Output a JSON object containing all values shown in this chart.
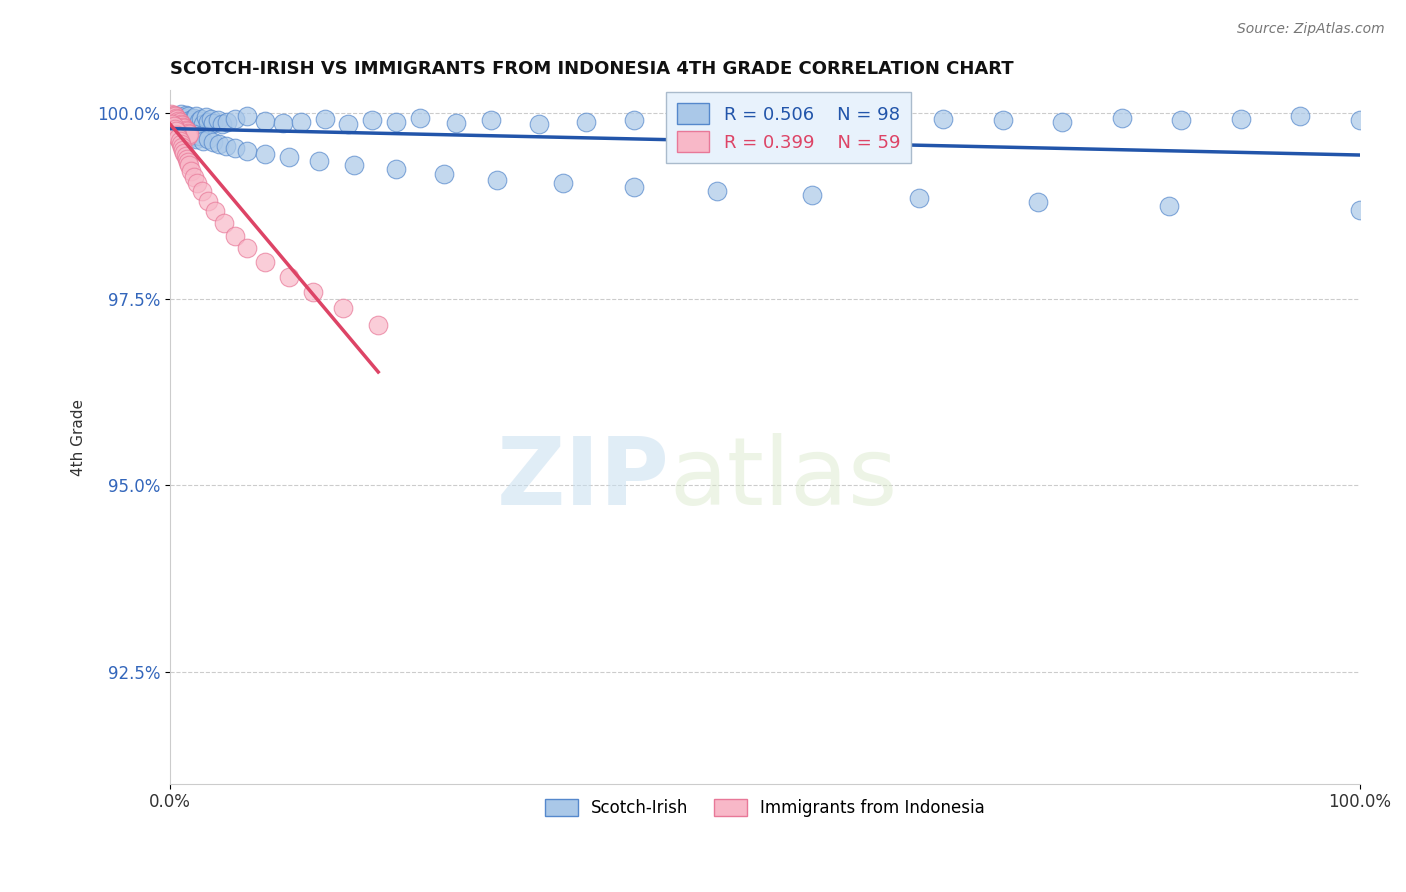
{
  "title": "SCOTCH-IRISH VS IMMIGRANTS FROM INDONESIA 4TH GRADE CORRELATION CHART",
  "source_text": "Source: ZipAtlas.com",
  "ylabel": "4th Grade",
  "xlim": [
    0.0,
    1.0
  ],
  "ylim": [
    0.91,
    1.003
  ],
  "yticks": [
    0.925,
    0.95,
    0.975,
    1.0
  ],
  "ytick_labels": [
    "92.5%",
    "95.0%",
    "97.5%",
    "100.0%"
  ],
  "xticks": [
    0.0,
    1.0
  ],
  "xtick_labels": [
    "0.0%",
    "100.0%"
  ],
  "legend_labels": [
    "Scotch-Irish",
    "Immigrants from Indonesia"
  ],
  "r_blue": 0.506,
  "n_blue": 98,
  "r_pink": 0.399,
  "n_pink": 59,
  "blue_color": "#aac8e8",
  "blue_edge_color": "#5588cc",
  "blue_line_color": "#2255aa",
  "pink_color": "#f8b8c8",
  "pink_edge_color": "#e87898",
  "pink_line_color": "#dd4466",
  "watermark_zip": "ZIP",
  "watermark_atlas": "atlas",
  "legend_box_color": "#e8f0f8",
  "legend_box_edge": "#aabbdd",
  "blue_scatter_x": [
    0.002,
    0.003,
    0.004,
    0.005,
    0.006,
    0.007,
    0.008,
    0.009,
    0.01,
    0.011,
    0.012,
    0.013,
    0.014,
    0.015,
    0.016,
    0.017,
    0.018,
    0.02,
    0.022,
    0.024,
    0.026,
    0.028,
    0.03,
    0.032,
    0.034,
    0.036,
    0.04,
    0.044,
    0.048,
    0.055,
    0.065,
    0.08,
    0.095,
    0.11,
    0.13,
    0.15,
    0.17,
    0.19,
    0.21,
    0.24,
    0.27,
    0.31,
    0.35,
    0.39,
    0.43,
    0.47,
    0.51,
    0.55,
    0.6,
    0.65,
    0.7,
    0.75,
    0.8,
    0.85,
    0.9,
    0.95,
    1.0,
    0.003,
    0.004,
    0.005,
    0.006,
    0.007,
    0.008,
    0.009,
    0.01,
    0.011,
    0.012,
    0.013,
    0.014,
    0.015,
    0.016,
    0.017,
    0.018,
    0.02,
    0.022,
    0.025,
    0.028,
    0.032,
    0.036,
    0.041,
    0.047,
    0.055,
    0.065,
    0.08,
    0.1,
    0.125,
    0.155,
    0.19,
    0.23,
    0.275,
    0.33,
    0.39,
    0.46,
    0.54,
    0.63,
    0.73,
    0.84,
    1.0
  ],
  "blue_scatter_y": [
    0.9995,
    0.999,
    0.9985,
    0.9992,
    0.9996,
    0.9988,
    0.9994,
    0.9998,
    0.9991,
    0.9986,
    0.9993,
    0.9997,
    0.9989,
    0.9995,
    0.9984,
    0.999,
    0.9987,
    0.9993,
    0.9996,
    0.9989,
    0.9992,
    0.9985,
    0.9994,
    0.9988,
    0.9991,
    0.9986,
    0.999,
    0.9985,
    0.9988,
    0.9992,
    0.9995,
    0.9989,
    0.9986,
    0.9988,
    0.9991,
    0.9985,
    0.999,
    0.9987,
    0.9993,
    0.9986,
    0.999,
    0.9985,
    0.9987,
    0.999,
    0.9987,
    0.999,
    0.9985,
    0.999,
    0.9987,
    0.9992,
    0.999,
    0.9988,
    0.9993,
    0.999,
    0.9992,
    0.9995,
    0.999,
    0.998,
    0.9975,
    0.9978,
    0.9982,
    0.9976,
    0.9979,
    0.9974,
    0.9977,
    0.9972,
    0.9975,
    0.997,
    0.9973,
    0.9968,
    0.9971,
    0.9966,
    0.9969,
    0.9972,
    0.9965,
    0.9968,
    0.9962,
    0.9965,
    0.996,
    0.9958,
    0.9955,
    0.9952,
    0.9948,
    0.9945,
    0.994,
    0.9935,
    0.993,
    0.9925,
    0.9918,
    0.991,
    0.9905,
    0.99,
    0.9895,
    0.989,
    0.9885,
    0.988,
    0.9875,
    0.987
  ],
  "pink_scatter_x": [
    0.001,
    0.002,
    0.002,
    0.003,
    0.003,
    0.004,
    0.004,
    0.005,
    0.005,
    0.006,
    0.006,
    0.007,
    0.007,
    0.008,
    0.008,
    0.009,
    0.009,
    0.01,
    0.01,
    0.011,
    0.011,
    0.012,
    0.012,
    0.013,
    0.013,
    0.014,
    0.014,
    0.015,
    0.015,
    0.016,
    0.002,
    0.003,
    0.004,
    0.005,
    0.006,
    0.007,
    0.008,
    0.009,
    0.01,
    0.011,
    0.012,
    0.013,
    0.014,
    0.015,
    0.016,
    0.018,
    0.02,
    0.023,
    0.027,
    0.032,
    0.038,
    0.045,
    0.055,
    0.065,
    0.08,
    0.1,
    0.12,
    0.145,
    0.175
  ],
  "pink_scatter_y": [
    0.9998,
    0.9996,
    0.9994,
    0.9997,
    0.9992,
    0.9995,
    0.999,
    0.9993,
    0.9988,
    0.9991,
    0.9986,
    0.9989,
    0.9984,
    0.9987,
    0.9982,
    0.9985,
    0.998,
    0.9983,
    0.9978,
    0.9981,
    0.9976,
    0.9979,
    0.9974,
    0.9977,
    0.9972,
    0.9975,
    0.997,
    0.9973,
    0.9968,
    0.9971,
    0.9985,
    0.9982,
    0.9978,
    0.9975,
    0.997,
    0.9966,
    0.9962,
    0.9958,
    0.9954,
    0.995,
    0.9946,
    0.9942,
    0.9938,
    0.9934,
    0.993,
    0.9922,
    0.9914,
    0.9905,
    0.9895,
    0.9882,
    0.9868,
    0.9852,
    0.9835,
    0.9818,
    0.98,
    0.978,
    0.976,
    0.9738,
    0.9715
  ]
}
